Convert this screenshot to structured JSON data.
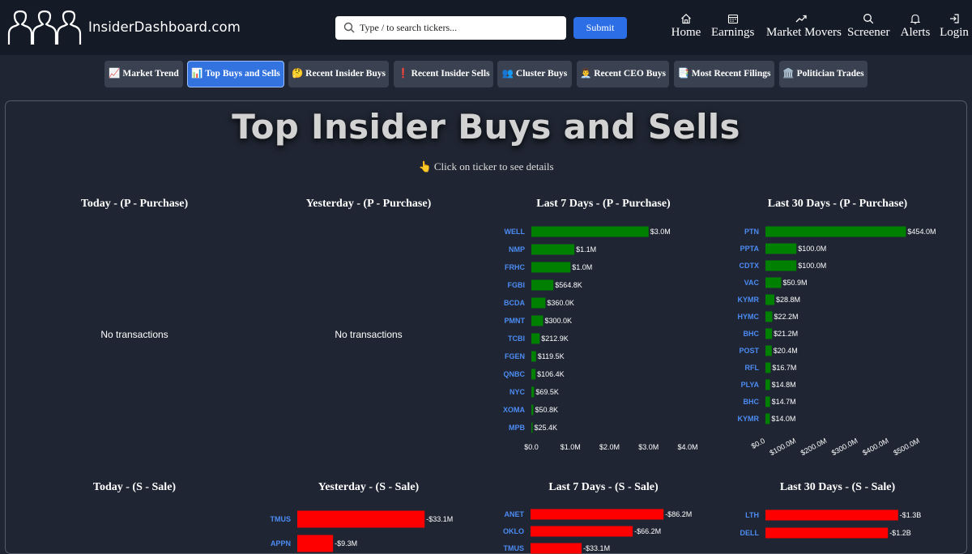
{
  "header": {
    "brand": "InsiderDashboard.com",
    "search_placeholder": "Type / to search tickers...",
    "submit_label": "Submit",
    "nav": [
      {
        "label": "Home",
        "icon": "home-icon"
      },
      {
        "label": "Earnings",
        "icon": "calendar-icon"
      },
      {
        "label": "Market Movers",
        "icon": "trending-up-icon"
      },
      {
        "label": "Screener",
        "icon": "search-icon"
      },
      {
        "label": "Alerts",
        "icon": "bell-icon"
      },
      {
        "label": "Login",
        "icon": "login-icon"
      }
    ]
  },
  "tabs": [
    {
      "label": "📈 Market Trend",
      "active": false
    },
    {
      "label": "📊 Top Buys and Sells",
      "active": true
    },
    {
      "label": "🤔 Recent Insider Buys",
      "active": false
    },
    {
      "label": "❗ Recent Insider Sells",
      "active": false
    },
    {
      "label": "👥 Cluster Buys",
      "active": false
    },
    {
      "label": "👨‍💼 Recent CEO Buys",
      "active": false
    },
    {
      "label": "📑 Most Recent Filings",
      "active": false
    },
    {
      "label": "🏛️ Politician Trades",
      "active": false
    }
  ],
  "main": {
    "title": "Top Insider Buys and Sells",
    "subtitle": "👆 Click on ticker to see details",
    "no_transactions": "No transactions"
  },
  "colors": {
    "buy": "#008000",
    "sell": "#ff0000",
    "ticker": "#4c8cf4",
    "accent": "#2b6ee6"
  },
  "chart_data": [
    {
      "type": "bar",
      "title": "Today - (P - Purchase)",
      "categories": [],
      "values": []
    },
    {
      "type": "bar",
      "title": "Yesterday - (P - Purchase)",
      "categories": [],
      "values": []
    },
    {
      "type": "bar",
      "orientation": "horizontal",
      "title": "Last 7 Days - (P - Purchase)",
      "categories": [
        "WELL",
        "NMP",
        "FRHC",
        "FGBI",
        "BCDA",
        "PMNT",
        "TCBI",
        "FGEN",
        "QNBC",
        "NYC",
        "XOMA",
        "MPB"
      ],
      "values": [
        3000000,
        1100000,
        1000000,
        564800,
        360000,
        300000,
        212900,
        119500,
        106400,
        69500,
        50800,
        25400
      ],
      "value_labels": [
        "$3.0M",
        "$1.1M",
        "$1.0M",
        "$564.8K",
        "$360.0K",
        "$300.0K",
        "$212.9K",
        "$119.5K",
        "$106.4K",
        "$69.5K",
        "$50.8K",
        "$25.4K"
      ],
      "xlim": [
        0,
        4000000
      ],
      "xticks": [
        "$0.0",
        "$1.0M",
        "$2.0M",
        "$3.0M",
        "$4.0M"
      ]
    },
    {
      "type": "bar",
      "orientation": "horizontal",
      "title": "Last 30 Days - (P - Purchase)",
      "categories": [
        "PTN",
        "PPTA",
        "CDTX",
        "VAC",
        "KYMR",
        "HYMC",
        "BHC",
        "POST",
        "RFL",
        "PLYA",
        "BHC",
        "KYMR"
      ],
      "values": [
        454000000,
        100000000,
        100000000,
        50900000,
        28800000,
        22200000,
        21200000,
        20400000,
        16700000,
        14800000,
        14700000,
        14000000
      ],
      "value_labels": [
        "$454.0M",
        "$100.0M",
        "$100.0M",
        "$50.9M",
        "$28.8M",
        "$22.2M",
        "$21.2M",
        "$20.4M",
        "$16.7M",
        "$14.8M",
        "$14.7M",
        "$14.0M"
      ],
      "xlim": [
        0,
        500000000
      ],
      "xticks": [
        "$0.0",
        "$100.0M",
        "$200.0M",
        "$300.0M",
        "$400.0M",
        "$500.0M"
      ]
    },
    {
      "type": "bar",
      "title": "Today - (S - Sale)",
      "categories": [],
      "values": []
    },
    {
      "type": "bar",
      "orientation": "horizontal",
      "title": "Yesterday - (S - Sale)",
      "categories": [
        "TMUS",
        "APPN"
      ],
      "values": [
        -33100000,
        -9300000
      ],
      "value_labels": [
        "-$33.1M",
        "-$9.3M"
      ],
      "xlim": [
        0,
        40000000
      ]
    },
    {
      "type": "bar",
      "orientation": "horizontal",
      "title": "Last 7 Days - (S - Sale)",
      "categories": [
        "ANET",
        "OKLO",
        "TMUS"
      ],
      "values": [
        -86200000,
        -66200000,
        -33100000
      ],
      "value_labels": [
        "-$86.2M",
        "-$66.2M",
        "-$33.1M"
      ],
      "xlim": [
        0,
        105000000
      ]
    },
    {
      "type": "bar",
      "orientation": "horizontal",
      "title": "Last 30 Days - (S - Sale)",
      "categories": [
        "LTH",
        "DELL"
      ],
      "values": [
        -1300000000,
        -1200000000
      ],
      "value_labels": [
        "-$1.3B",
        "-$1.2B"
      ],
      "xlim": [
        0,
        1500000000
      ]
    }
  ]
}
